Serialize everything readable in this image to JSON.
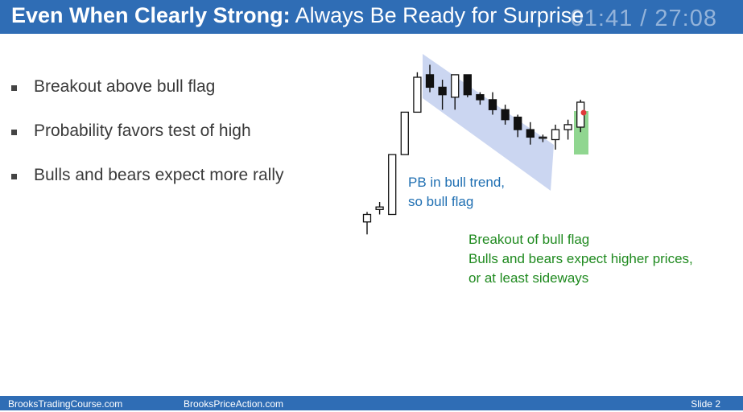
{
  "slide": {
    "title_strong": "Even When Clearly Strong:",
    "title_rest": " Always Be Ready for Surprise",
    "timer": "01:41 / 27:08"
  },
  "bullets": [
    "Breakout above bull flag",
    "Probability favors test of high",
    "Bulls and bears expect more rally"
  ],
  "annotations": {
    "pb_line1": "PB in bull trend,",
    "pb_line2": "so bull flag",
    "breakout_line1": "Breakout of bull flag",
    "breakout_line2": "Bulls and bears expect higher prices,",
    "breakout_line3": "or at least sideways"
  },
  "footer": {
    "left": "BrooksTradingCourse.com",
    "center": "BrooksPriceAction.com",
    "right": "Slide  2"
  },
  "colors": {
    "header_bg": "#2f6db5",
    "channel_fill": "#c5d1f0",
    "highlight_fill": "#7ccf7c",
    "blue_text": "#1f6fb2",
    "green_text": "#1f8a1f"
  },
  "chart_data": {
    "type": "candlestick",
    "candles": [
      {
        "o": 2,
        "h": 6,
        "l": -3,
        "c": 5
      },
      {
        "o": 7,
        "h": 10,
        "l": 5,
        "c": 8
      },
      {
        "o": 5,
        "h": 29,
        "l": 5,
        "c": 29
      },
      {
        "o": 29,
        "h": 46,
        "l": 29,
        "c": 46
      },
      {
        "o": 46,
        "h": 62,
        "l": 46,
        "c": 60
      },
      {
        "o": 61,
        "h": 65,
        "l": 54,
        "c": 56
      },
      {
        "o": 56,
        "h": 59,
        "l": 47,
        "c": 53
      },
      {
        "o": 52,
        "h": 61,
        "l": 47,
        "c": 61
      },
      {
        "o": 61,
        "h": 61,
        "l": 52,
        "c": 53
      },
      {
        "o": 53,
        "h": 54,
        "l": 49,
        "c": 51
      },
      {
        "o": 51,
        "h": 54,
        "l": 45,
        "c": 47
      },
      {
        "o": 47,
        "h": 49,
        "l": 41,
        "c": 43
      },
      {
        "o": 44,
        "h": 45,
        "l": 36,
        "c": 39
      },
      {
        "o": 39,
        "h": 42,
        "l": 33,
        "c": 36
      },
      {
        "o": 36,
        "h": 37,
        "l": 34,
        "c": 36
      },
      {
        "o": 35,
        "h": 41,
        "l": 31,
        "c": 39
      },
      {
        "o": 39,
        "h": 43,
        "l": 35,
        "c": 41
      },
      {
        "o": 40,
        "h": 51,
        "l": 38,
        "c": 50
      }
    ]
  }
}
